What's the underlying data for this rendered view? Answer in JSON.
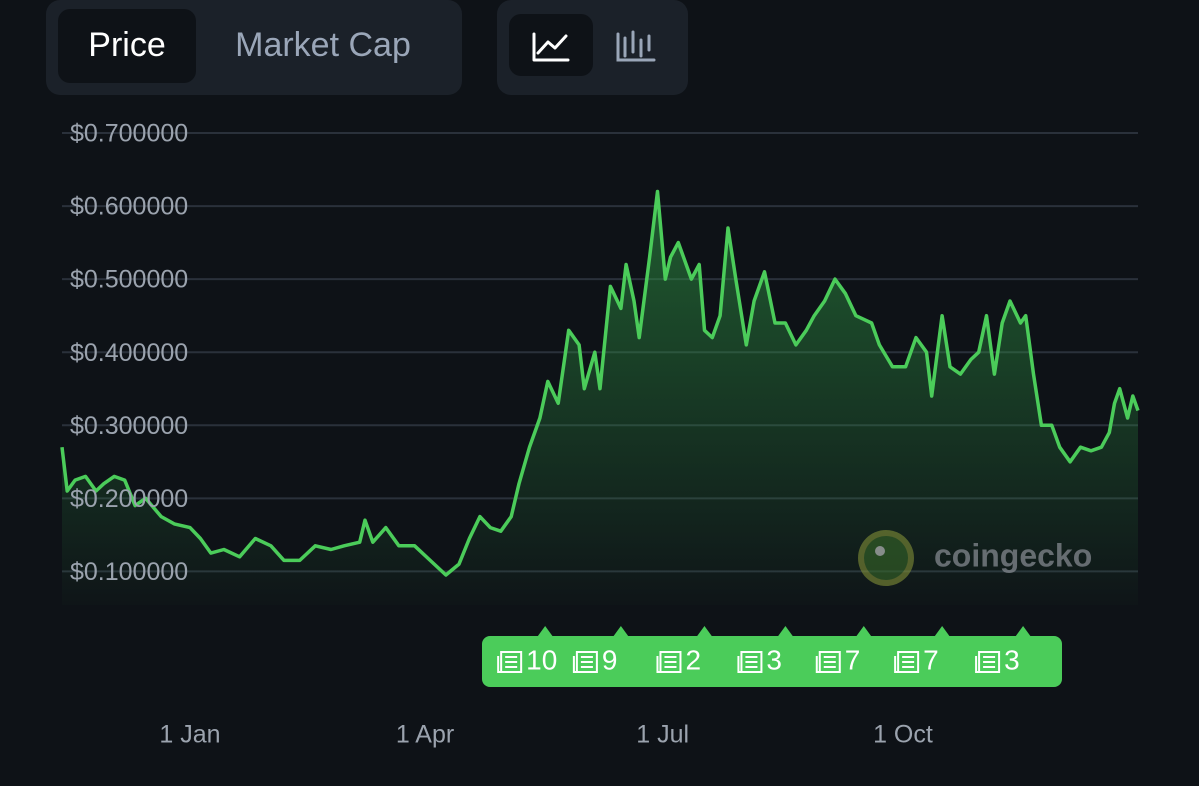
{
  "tabs": [
    "Price",
    "Market Cap"
  ],
  "watermark": "coingecko",
  "chart_data": {
    "type": "line",
    "x": [
      -49,
      -47,
      -44,
      -40,
      -36,
      -33,
      -29,
      -25,
      -21,
      -17,
      -11,
      -6,
      0,
      4,
      8,
      13,
      19,
      25,
      31,
      36,
      42,
      48,
      54,
      59,
      65,
      67,
      70,
      75,
      80,
      86,
      92,
      98,
      103,
      107,
      111,
      115,
      119,
      123,
      126,
      130,
      134,
      137,
      141,
      145,
      149,
      151,
      155,
      157,
      161,
      165,
      167,
      170,
      172,
      176,
      179,
      182,
      184,
      187,
      192,
      195,
      197,
      200,
      203,
      206,
      209,
      213,
      216,
      220,
      224,
      228,
      232,
      236,
      239,
      243,
      247,
      251,
      255,
      261,
      264,
      269,
      274,
      278,
      282,
      284,
      288,
      291,
      295,
      299,
      302,
      305,
      308,
      311,
      314,
      318,
      320,
      323,
      326,
      330,
      333,
      337,
      341,
      345,
      349,
      352,
      354,
      356,
      359,
      361,
      363
    ],
    "series": [
      {
        "color": "#4bcc5a",
        "values": [
          0.27,
          0.21,
          0.225,
          0.23,
          0.21,
          0.22,
          0.23,
          0.225,
          0.19,
          0.2,
          0.175,
          0.165,
          0.16,
          0.145,
          0.125,
          0.13,
          0.12,
          0.145,
          0.135,
          0.115,
          0.115,
          0.135,
          0.13,
          0.135,
          0.14,
          0.17,
          0.14,
          0.16,
          0.135,
          0.135,
          0.115,
          0.095,
          0.11,
          0.145,
          0.175,
          0.16,
          0.155,
          0.175,
          0.22,
          0.27,
          0.31,
          0.36,
          0.33,
          0.43,
          0.41,
          0.35,
          0.4,
          0.35,
          0.49,
          0.46,
          0.52,
          0.47,
          0.42,
          0.53,
          0.62,
          0.5,
          0.53,
          0.55,
          0.5,
          0.52,
          0.43,
          0.42,
          0.45,
          0.57,
          0.5,
          0.41,
          0.47,
          0.51,
          0.44,
          0.44,
          0.41,
          0.43,
          0.45,
          0.47,
          0.5,
          0.48,
          0.45,
          0.44,
          0.41,
          0.38,
          0.38,
          0.42,
          0.4,
          0.34,
          0.45,
          0.38,
          0.37,
          0.39,
          0.4,
          0.45,
          0.37,
          0.44,
          0.47,
          0.44,
          0.45,
          0.37,
          0.3,
          0.3,
          0.27,
          0.25,
          0.27,
          0.265,
          0.27,
          0.29,
          0.33,
          0.35,
          0.31,
          0.34,
          0.32
        ]
      }
    ],
    "xlim": [
      -49,
      363
    ],
    "xticks": [
      {
        "value": 0,
        "label": "1 Jan"
      },
      {
        "value": 90,
        "label": "1 Apr"
      },
      {
        "value": 181,
        "label": "1 Jul"
      },
      {
        "value": 273,
        "label": "1 Oct"
      }
    ],
    "ylim": [
      0.054,
      0.7
    ],
    "yticks": [
      {
        "value": 0.1,
        "label": "$0.100000"
      },
      {
        "value": 0.2,
        "label": "$0.200000"
      },
      {
        "value": 0.3,
        "label": "$0.300000"
      },
      {
        "value": 0.4,
        "label": "$0.400000"
      },
      {
        "value": 0.5,
        "label": "$0.500000"
      },
      {
        "value": 0.6,
        "label": "$0.600000"
      },
      {
        "value": 0.7,
        "label": "$0.700000"
      }
    ],
    "grid": true,
    "events": {
      "x": [
        136,
        165,
        197,
        228,
        258,
        288,
        319
      ],
      "counts": [
        10,
        9,
        2,
        3,
        7,
        7,
        3
      ]
    }
  }
}
